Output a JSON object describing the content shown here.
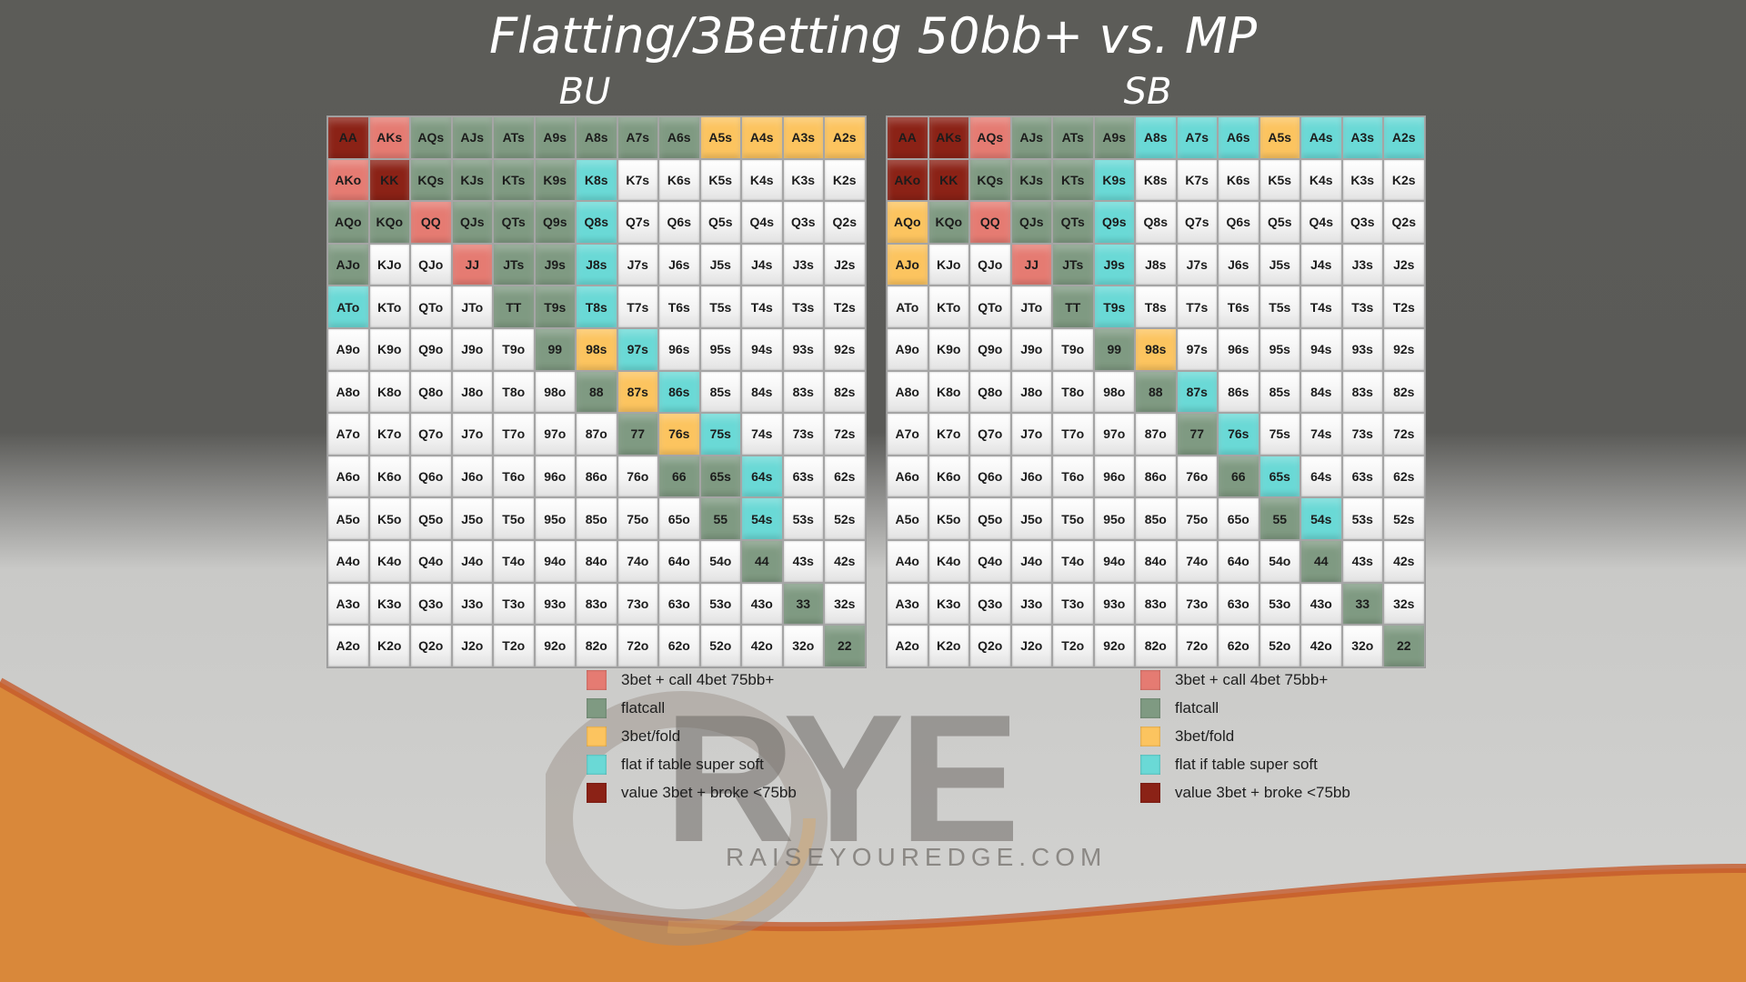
{
  "title": "Flatting/3Betting 50bb+ vs. MP",
  "colors": {
    "3bet_call": "#e57b72",
    "flatcall": "#7f9a82",
    "3bet_fold": "#fcc45f",
    "flat_soft": "#6ad9d6",
    "value": "#8b2216",
    "fold": "#f2f2f2",
    "wave_orange": "#d9883a",
    "wave_red": "#c45a2c"
  },
  "logo": {
    "text": "RYE",
    "tagline": "RAISEYOUREDGE.COM"
  },
  "chart_data": [
    {
      "type": "table",
      "title": "BU",
      "rows": [
        [
          "AA",
          "AKs",
          "AQs",
          "AJs",
          "ATs",
          "A9s",
          "A8s",
          "A7s",
          "A6s",
          "A5s",
          "A4s",
          "A3s",
          "A2s"
        ],
        [
          "AKo",
          "KK",
          "KQs",
          "KJs",
          "KTs",
          "K9s",
          "K8s",
          "K7s",
          "K6s",
          "K5s",
          "K4s",
          "K3s",
          "K2s"
        ],
        [
          "AQo",
          "KQo",
          "QQ",
          "QJs",
          "QTs",
          "Q9s",
          "Q8s",
          "Q7s",
          "Q6s",
          "Q5s",
          "Q4s",
          "Q3s",
          "Q2s"
        ],
        [
          "AJo",
          "KJo",
          "QJo",
          "JJ",
          "JTs",
          "J9s",
          "J8s",
          "J7s",
          "J6s",
          "J5s",
          "J4s",
          "J3s",
          "J2s"
        ],
        [
          "ATo",
          "KTo",
          "QTo",
          "JTo",
          "TT",
          "T9s",
          "T8s",
          "T7s",
          "T6s",
          "T5s",
          "T4s",
          "T3s",
          "T2s"
        ],
        [
          "A9o",
          "K9o",
          "Q9o",
          "J9o",
          "T9o",
          "99",
          "98s",
          "97s",
          "96s",
          "95s",
          "94s",
          "93s",
          "92s"
        ],
        [
          "A8o",
          "K8o",
          "Q8o",
          "J8o",
          "T8o",
          "98o",
          "88",
          "87s",
          "86s",
          "85s",
          "84s",
          "83s",
          "82s"
        ],
        [
          "A7o",
          "K7o",
          "Q7o",
          "J7o",
          "T7o",
          "97o",
          "87o",
          "77",
          "76s",
          "75s",
          "74s",
          "73s",
          "72s"
        ],
        [
          "A6o",
          "K6o",
          "Q6o",
          "J6o",
          "T6o",
          "96o",
          "86o",
          "76o",
          "66",
          "65s",
          "64s",
          "63s",
          "62s"
        ],
        [
          "A5o",
          "K5o",
          "Q5o",
          "J5o",
          "T5o",
          "95o",
          "85o",
          "75o",
          "65o",
          "55",
          "54s",
          "53s",
          "52s"
        ],
        [
          "A4o",
          "K4o",
          "Q4o",
          "J4o",
          "T4o",
          "94o",
          "84o",
          "74o",
          "64o",
          "54o",
          "44",
          "43s",
          "42s"
        ],
        [
          "A3o",
          "K3o",
          "Q3o",
          "J3o",
          "T3o",
          "93o",
          "83o",
          "73o",
          "63o",
          "53o",
          "43o",
          "33",
          "32s"
        ],
        [
          "A2o",
          "K2o",
          "Q2o",
          "J2o",
          "T2o",
          "92o",
          "82o",
          "72o",
          "62o",
          "52o",
          "42o",
          "32o",
          "22"
        ]
      ],
      "actions": {
        "AA": "value",
        "AKs": "3bet_call",
        "AKo": "3bet_call",
        "KK": "value",
        "QQ": "3bet_call",
        "JJ": "3bet_call",
        "AQs": "flatcall",
        "AJs": "flatcall",
        "ATs": "flatcall",
        "A9s": "flatcall",
        "A8s": "flatcall",
        "A7s": "flatcall",
        "A6s": "flatcall",
        "KQs": "flatcall",
        "KJs": "flatcall",
        "KTs": "flatcall",
        "K9s": "flatcall",
        "AQo": "flatcall",
        "KQo": "flatcall",
        "QJs": "flatcall",
        "QTs": "flatcall",
        "Q9s": "flatcall",
        "AJo": "flatcall",
        "JTs": "flatcall",
        "J9s": "flatcall",
        "TT": "flatcall",
        "T9s": "flatcall",
        "99": "flatcall",
        "88": "flatcall",
        "77": "flatcall",
        "66": "flatcall",
        "65s": "flatcall",
        "55": "flatcall",
        "44": "flatcall",
        "33": "flatcall",
        "22": "flatcall",
        "A5s": "3bet_fold",
        "A4s": "3bet_fold",
        "A3s": "3bet_fold",
        "A2s": "3bet_fold",
        "98s": "3bet_fold",
        "87s": "3bet_fold",
        "76s": "3bet_fold",
        "K8s": "flat_soft",
        "Q8s": "flat_soft",
        "J8s": "flat_soft",
        "T8s": "flat_soft",
        "ATo": "flat_soft",
        "97s": "flat_soft",
        "86s": "flat_soft",
        "75s": "flat_soft",
        "64s": "flat_soft",
        "54s": "flat_soft"
      }
    },
    {
      "type": "table",
      "title": "SB",
      "rows": [
        [
          "AA",
          "AKs",
          "AQs",
          "AJs",
          "ATs",
          "A9s",
          "A8s",
          "A7s",
          "A6s",
          "A5s",
          "A4s",
          "A3s",
          "A2s"
        ],
        [
          "AKo",
          "KK",
          "KQs",
          "KJs",
          "KTs",
          "K9s",
          "K8s",
          "K7s",
          "K6s",
          "K5s",
          "K4s",
          "K3s",
          "K2s"
        ],
        [
          "AQo",
          "KQo",
          "QQ",
          "QJs",
          "QTs",
          "Q9s",
          "Q8s",
          "Q7s",
          "Q6s",
          "Q5s",
          "Q4s",
          "Q3s",
          "Q2s"
        ],
        [
          "AJo",
          "KJo",
          "QJo",
          "JJ",
          "JTs",
          "J9s",
          "J8s",
          "J7s",
          "J6s",
          "J5s",
          "J4s",
          "J3s",
          "J2s"
        ],
        [
          "ATo",
          "KTo",
          "QTo",
          "JTo",
          "TT",
          "T9s",
          "T8s",
          "T7s",
          "T6s",
          "T5s",
          "T4s",
          "T3s",
          "T2s"
        ],
        [
          "A9o",
          "K9o",
          "Q9o",
          "J9o",
          "T9o",
          "99",
          "98s",
          "97s",
          "96s",
          "95s",
          "94s",
          "93s",
          "92s"
        ],
        [
          "A8o",
          "K8o",
          "Q8o",
          "J8o",
          "T8o",
          "98o",
          "88",
          "87s",
          "86s",
          "85s",
          "84s",
          "83s",
          "82s"
        ],
        [
          "A7o",
          "K7o",
          "Q7o",
          "J7o",
          "T7o",
          "97o",
          "87o",
          "77",
          "76s",
          "75s",
          "74s",
          "73s",
          "72s"
        ],
        [
          "A6o",
          "K6o",
          "Q6o",
          "J6o",
          "T6o",
          "96o",
          "86o",
          "76o",
          "66",
          "65s",
          "64s",
          "63s",
          "62s"
        ],
        [
          "A5o",
          "K5o",
          "Q5o",
          "J5o",
          "T5o",
          "95o",
          "85o",
          "75o",
          "65o",
          "55",
          "54s",
          "53s",
          "52s"
        ],
        [
          "A4o",
          "K4o",
          "Q4o",
          "J4o",
          "T4o",
          "94o",
          "84o",
          "74o",
          "64o",
          "54o",
          "44",
          "43s",
          "42s"
        ],
        [
          "A3o",
          "K3o",
          "Q3o",
          "J3o",
          "T3o",
          "93o",
          "83o",
          "73o",
          "63o",
          "53o",
          "43o",
          "33",
          "32s"
        ],
        [
          "A2o",
          "K2o",
          "Q2o",
          "J2o",
          "T2o",
          "92o",
          "82o",
          "72o",
          "62o",
          "52o",
          "42o",
          "32o",
          "22"
        ]
      ],
      "actions": {
        "AA": "value",
        "AKs": "value",
        "AKo": "value",
        "KK": "value",
        "AQs": "3bet_call",
        "QQ": "3bet_call",
        "JJ": "3bet_call",
        "AJs": "flatcall",
        "ATs": "flatcall",
        "A9s": "flatcall",
        "KQs": "flatcall",
        "KJs": "flatcall",
        "KTs": "flatcall",
        "KQo": "flatcall",
        "QJs": "flatcall",
        "QTs": "flatcall",
        "JTs": "flatcall",
        "TT": "flatcall",
        "99": "flatcall",
        "88": "flatcall",
        "77": "flatcall",
        "66": "flatcall",
        "55": "flatcall",
        "44": "flatcall",
        "33": "flatcall",
        "22": "flatcall",
        "A5s": "3bet_fold",
        "AQo": "3bet_fold",
        "AJo": "3bet_fold",
        "98s": "3bet_fold",
        "A8s": "flat_soft",
        "A7s": "flat_soft",
        "A6s": "flat_soft",
        "A4s": "flat_soft",
        "A3s": "flat_soft",
        "A2s": "flat_soft",
        "K9s": "flat_soft",
        "Q9s": "flat_soft",
        "J9s": "flat_soft",
        "T9s": "flat_soft",
        "87s": "flat_soft",
        "76s": "flat_soft",
        "65s": "flat_soft",
        "54s": "flat_soft"
      }
    }
  ],
  "legend": [
    {
      "key": "3bet_call",
      "label": "3bet + call 4bet 75bb+"
    },
    {
      "key": "flatcall",
      "label": "flatcall"
    },
    {
      "key": "3bet_fold",
      "label": "3bet/fold"
    },
    {
      "key": "flat_soft",
      "label": "flat if table super soft"
    },
    {
      "key": "value",
      "label": "value 3bet + broke <75bb"
    }
  ]
}
